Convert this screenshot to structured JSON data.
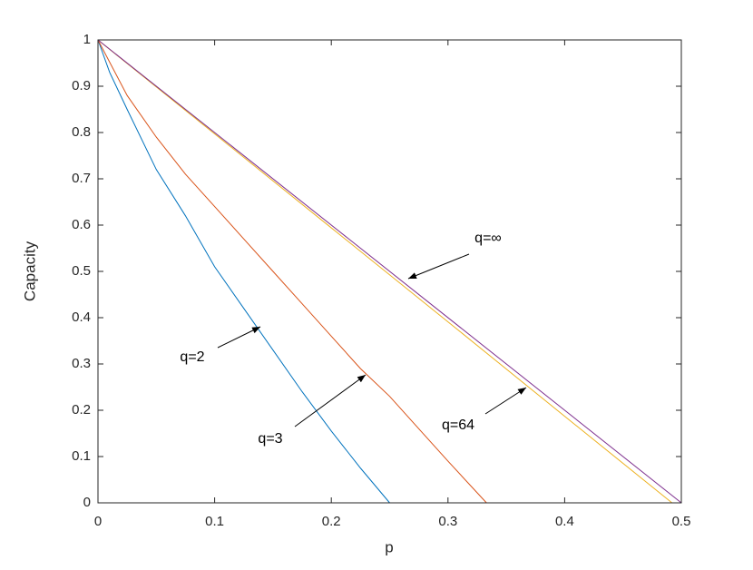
{
  "chart_data": {
    "type": "line",
    "xlabel": "p",
    "ylabel": "Capacity",
    "xlim": [
      0,
      0.5
    ],
    "ylim": [
      0,
      1
    ],
    "xticks": [
      0,
      0.1,
      0.2,
      0.3,
      0.4,
      0.5
    ],
    "yticks": [
      0,
      0.1,
      0.2,
      0.3,
      0.4,
      0.5,
      0.6,
      0.7,
      0.8,
      0.9,
      1
    ],
    "series": [
      {
        "color": "#0072bd",
        "x": [
          0,
          0.01,
          0.025,
          0.05,
          0.075,
          0.1,
          0.125,
          0.15,
          0.175,
          0.2,
          0.225,
          0.25
        ],
        "values": [
          1,
          0.93,
          0.85,
          0.72,
          0.62,
          0.51,
          0.42,
          0.33,
          0.24,
          0.155,
          0.075,
          0
        ]
      },
      {
        "color": "#d95319",
        "x": [
          0,
          0.025,
          0.05,
          0.075,
          0.1,
          0.125,
          0.15,
          0.175,
          0.2,
          0.225,
          0.25,
          0.275,
          0.3,
          0.333
        ],
        "values": [
          1,
          0.88,
          0.79,
          0.71,
          0.64,
          0.57,
          0.5,
          0.43,
          0.36,
          0.29,
          0.23,
          0.16,
          0.09,
          0
        ]
      },
      {
        "color": "#edb120",
        "x": [
          0,
          0.1,
          0.2,
          0.3,
          0.4,
          0.492
        ],
        "values": [
          1,
          0.797,
          0.594,
          0.391,
          0.187,
          0
        ]
      },
      {
        "color": "#7e2f8e",
        "x": [
          0,
          0.5
        ],
        "values": [
          1,
          0
        ]
      }
    ],
    "annotations": [
      "q=2",
      "q=3",
      "q=64",
      "q=∞"
    ]
  }
}
